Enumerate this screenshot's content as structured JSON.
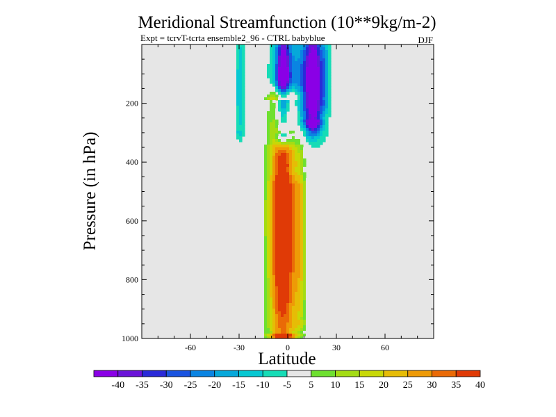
{
  "chart_data": {
    "type": "heatmap",
    "title": "Meridional Streamfunction (10**9kg/m-2)",
    "subtitle": "Expt = tcrvT-tcrta  ensemble2_96 - CTRL babyblue",
    "season": "DJF",
    "xlabel": "Latitude",
    "ylabel": "Pressure (in hPa)",
    "xlim": [
      -90,
      90
    ],
    "ylim": [
      1000,
      0
    ],
    "y_inverted": true,
    "xticks": [
      -60,
      -30,
      0,
      30,
      60
    ],
    "xtick_labels": [
      "-60",
      "-30",
      "0",
      "30",
      "60"
    ],
    "yticks": [
      200,
      400,
      600,
      800,
      1000
    ],
    "ytick_labels": [
      "200",
      "400",
      "600",
      "800",
      "1000"
    ],
    "levels": [
      -40,
      -35,
      -30,
      -25,
      -20,
      -15,
      -10,
      -5,
      5,
      10,
      15,
      20,
      25,
      30,
      35,
      40
    ],
    "colorbar_labels": [
      "-40",
      "-35",
      "-30",
      "-25",
      "-20",
      "-15",
      "-10",
      "-5",
      "5",
      "10",
      "15",
      "20",
      "25",
      "30",
      "35",
      "40"
    ],
    "colors": [
      "#8a00e6",
      "#6b14d8",
      "#2a2ad8",
      "#1a54e0",
      "#0a84e2",
      "#06a8da",
      "#06c8d2",
      "#16dcb6",
      "#e6e6e6",
      "#6ee030",
      "#a4dc14",
      "#c8d806",
      "#e6bc06",
      "#ee9a06",
      "#ea6a06",
      "#e03a06"
    ],
    "background_color": "#e6e6e6",
    "fields": [
      {
        "name": "southern_upper_negative",
        "lat_center": -29.5,
        "lat_width": 2.5,
        "p_top": 0,
        "p_bottom": 290,
        "peak": -14
      },
      {
        "name": "upper_negative_cell",
        "lat_center": -3,
        "lat_width": 4.2,
        "p_top": 0,
        "p_bottom": 300,
        "peak": -42
      },
      {
        "name": "upper_negative_cell_b",
        "lat_center": 16,
        "lat_width": 5.5,
        "p_top": 0,
        "p_bottom": 260,
        "peak": -44
      },
      {
        "name": "negative_ridge",
        "lat_center": 6,
        "lat_width": 12,
        "p_top": 0,
        "p_bottom": 300,
        "peak": -14
      },
      {
        "name": "negative_skirt",
        "lat_center": 4,
        "lat_width": 19,
        "p_top": 0,
        "p_bottom": 420,
        "peak": -8
      },
      {
        "name": "outer_negative_band",
        "lat_center": 23,
        "lat_width": 2.5,
        "p_top": 0,
        "p_bottom": 190,
        "peak": -12
      },
      {
        "name": "main_positive_cell",
        "lat_center": -3,
        "lat_width": 9.5,
        "p_top": 190,
        "p_bottom": 985,
        "peak": 54
      },
      {
        "name": "positive_flank",
        "lat_center": 8,
        "lat_width": 3.8,
        "p_top": 330,
        "p_bottom": 940,
        "peak": 16
      },
      {
        "name": "southern_weak_positive",
        "lat_center": -24,
        "lat_width": 1.6,
        "p_top": 420,
        "p_bottom": 880,
        "peak": 6.5
      },
      {
        "name": "northern_weak_positive",
        "lat_center": 39,
        "lat_width": 4.5,
        "p_top": 170,
        "p_bottom": 920,
        "peak": 9
      },
      {
        "name": "polar_top_positive_north",
        "lat_center": 62,
        "lat_width": 2.5,
        "p_top": 0,
        "p_bottom": 90,
        "peak": 7
      },
      {
        "name": "polar_top_positive_south",
        "lat_center": -48,
        "lat_width": 2.2,
        "p_top": 0,
        "p_bottom": 110,
        "peak": 6.5
      }
    ]
  }
}
